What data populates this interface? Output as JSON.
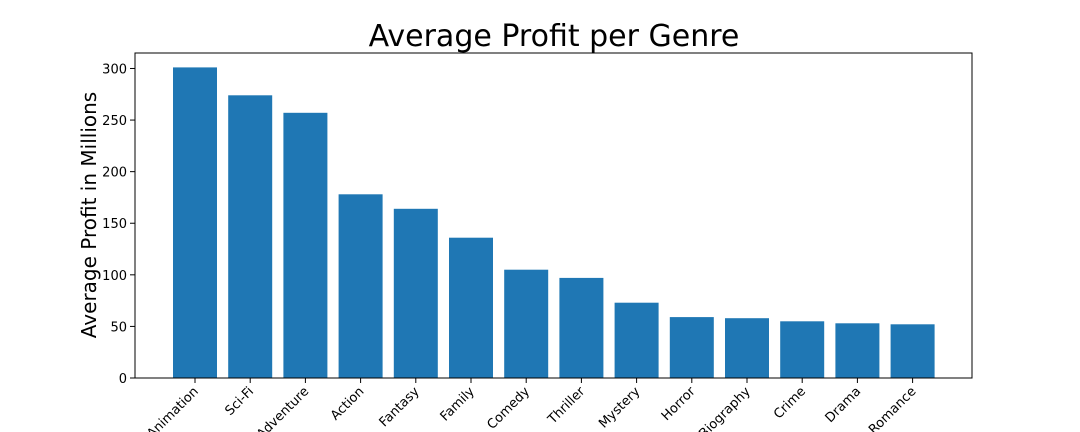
{
  "chart_data": {
    "type": "bar",
    "title": "Average Profit per Genre",
    "xlabel": "",
    "ylabel": "Average Profit in Millions",
    "categories": [
      "Animation",
      "Sci-Fi",
      "Adventure",
      "Action",
      "Fantasy",
      "Family",
      "Comedy",
      "Thriller",
      "Mystery",
      "Horror",
      "Biography",
      "Crime",
      "Drama",
      "Romance"
    ],
    "values": [
      301,
      274,
      257,
      178,
      164,
      136,
      105,
      97,
      73,
      59,
      58,
      55,
      53,
      52
    ],
    "ylim": [
      0,
      315
    ],
    "yticks": [
      0,
      50,
      100,
      150,
      200,
      250,
      300
    ],
    "bar_color": "#1f77b4",
    "grid": false,
    "legend": "none"
  }
}
